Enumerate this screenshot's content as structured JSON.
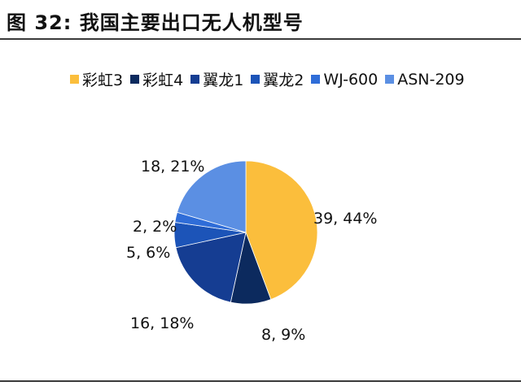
{
  "header": {
    "title": "图 32:  我国主要出口无人机型号"
  },
  "chart_data": {
    "type": "pie",
    "title": "",
    "legend_position": "top",
    "categories": [
      "彩虹3",
      "彩虹4",
      "翼龙1",
      "翼龙2",
      "WJ-600",
      "ASN-209"
    ],
    "values": [
      39,
      8,
      16,
      5,
      2,
      18
    ],
    "percents": [
      44,
      9,
      18,
      6,
      2,
      21
    ],
    "labels": [
      "39, 44%",
      "8, 9%",
      "16, 18%",
      "5, 6%",
      "2, 2%",
      "18, 21%"
    ],
    "colors": [
      "#FBBE3C",
      "#0C2A5E",
      "#153D92",
      "#1C54B8",
      "#2F6DD8",
      "#5B8FE3"
    ]
  }
}
